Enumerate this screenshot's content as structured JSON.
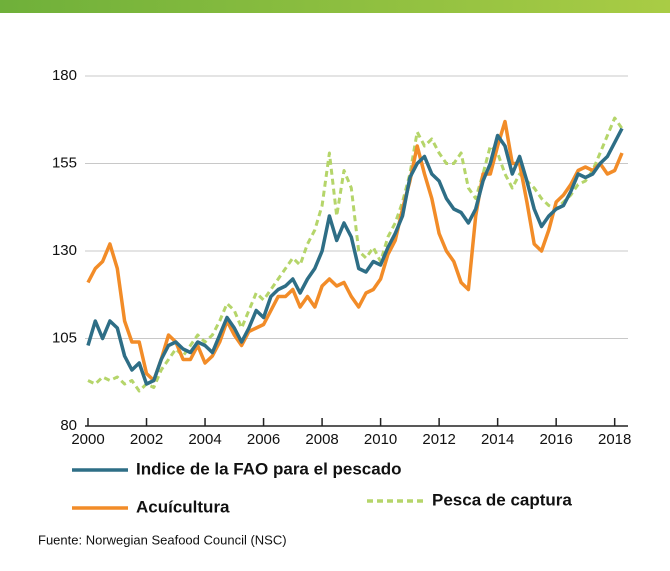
{
  "chart_data": {
    "type": "line",
    "x": [
      2000,
      2000.25,
      2000.5,
      2000.75,
      2001,
      2001.25,
      2001.5,
      2001.75,
      2002,
      2002.25,
      2002.5,
      2002.75,
      2003,
      2003.25,
      2003.5,
      2003.75,
      2004,
      2004.25,
      2004.5,
      2004.75,
      2005,
      2005.25,
      2005.5,
      2005.75,
      2006,
      2006.25,
      2006.5,
      2006.75,
      2007,
      2007.25,
      2007.5,
      2007.75,
      2008,
      2008.25,
      2008.5,
      2008.75,
      2009,
      2009.25,
      2009.5,
      2009.75,
      2010,
      2010.25,
      2010.5,
      2010.75,
      2011,
      2011.25,
      2011.5,
      2011.75,
      2012,
      2012.25,
      2012.5,
      2012.75,
      2013,
      2013.25,
      2013.5,
      2013.75,
      2014,
      2014.25,
      2014.5,
      2014.75,
      2015,
      2015.25,
      2015.5,
      2015.75,
      2016,
      2016.25,
      2016.5,
      2016.75,
      2017,
      2017.25,
      2017.5,
      2017.75,
      2018,
      2018.25
    ],
    "series": [
      {
        "name": "Indice de la FAO para el pescado",
        "color": "#2e6e86",
        "dash": "solid",
        "values": [
          103,
          110,
          105,
          110,
          108,
          100,
          96,
          98,
          92,
          93,
          99,
          103,
          104,
          102,
          101,
          104,
          103,
          101,
          106,
          111,
          108,
          104,
          108,
          113,
          111,
          117,
          119,
          120,
          122,
          118,
          122,
          125,
          130,
          140,
          133,
          138,
          134,
          125,
          124,
          127,
          126,
          131,
          135,
          140,
          151,
          155,
          157,
          152,
          150,
          145,
          142,
          141,
          138,
          142,
          150,
          155,
          163,
          160,
          152,
          157,
          150,
          142,
          137,
          140,
          142,
          143,
          147,
          152,
          151,
          152,
          155,
          157,
          161,
          165
        ]
      },
      {
        "name": "Acuícultura",
        "color": "#f28c28",
        "dash": "solid",
        "values": [
          121,
          125,
          127,
          132,
          125,
          110,
          104,
          104,
          95,
          93,
          99,
          106,
          104,
          99,
          99,
          103,
          98,
          100,
          104,
          110,
          106,
          103,
          107,
          108,
          109,
          113,
          117,
          117,
          119,
          114,
          117,
          114,
          120,
          122,
          120,
          121,
          117,
          114,
          118,
          119,
          122,
          129,
          133,
          142,
          150,
          160,
          152,
          145,
          135,
          130,
          127,
          121,
          119,
          140,
          152,
          152,
          160,
          167,
          155,
          155,
          144,
          132,
          130,
          136,
          144,
          146,
          149,
          153,
          154,
          153,
          155,
          152,
          153,
          158
        ]
      },
      {
        "name": "Pesca de captura",
        "color": "#b5d56a",
        "dash": "dashed",
        "values": [
          93,
          92,
          94,
          93,
          94,
          92,
          93,
          90,
          92,
          91,
          96,
          99,
          102,
          100,
          103,
          106,
          104,
          106,
          110,
          115,
          113,
          108,
          113,
          118,
          116,
          119,
          122,
          125,
          128,
          126,
          132,
          136,
          143,
          158,
          140,
          153,
          148,
          130,
          128,
          131,
          127,
          134,
          138,
          144,
          152,
          164,
          160,
          162,
          158,
          155,
          155,
          158,
          148,
          145,
          152,
          160,
          158,
          152,
          148,
          152,
          150,
          148,
          145,
          143,
          142,
          144,
          146,
          149,
          150,
          153,
          158,
          163,
          168,
          165
        ]
      }
    ],
    "xlim": [
      2000,
      2018.25
    ],
    "xticks": [
      2000,
      2002,
      2004,
      2006,
      2008,
      2010,
      2012,
      2014,
      2016,
      2018
    ],
    "ylim": [
      80,
      180
    ],
    "yticks": [
      80,
      105,
      130,
      155,
      180
    ],
    "grid": true,
    "source": "Fuente: Norwegian Seafood Council (NSC)"
  }
}
